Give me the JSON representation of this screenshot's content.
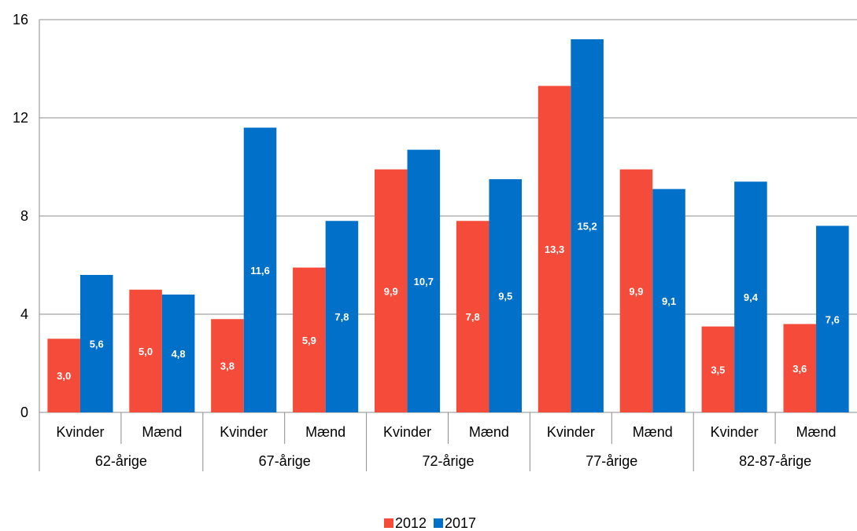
{
  "chart_data": {
    "type": "bar",
    "groups": [
      "62-årige",
      "67-årige",
      "72-årige",
      "77-årige",
      "82-87-årige"
    ],
    "categories": [
      "Kvinder",
      "Mænd",
      "Kvinder",
      "Mænd",
      "Kvinder",
      "Mænd",
      "Kvinder",
      "Mænd",
      "Kvinder",
      "Mænd"
    ],
    "series": [
      {
        "name": "2012",
        "color": "#f44b3a",
        "values": [
          3.0,
          5.0,
          3.8,
          5.9,
          9.9,
          7.8,
          13.3,
          9.9,
          3.5,
          3.6
        ],
        "labels": [
          "3,0",
          "5,0",
          "3,8",
          "5,9",
          "9,9",
          "7,8",
          "13,3",
          "9,9",
          "3,5",
          "3,6"
        ]
      },
      {
        "name": "2017",
        "color": "#0070c8",
        "values": [
          5.6,
          4.8,
          11.6,
          7.8,
          10.7,
          9.5,
          15.2,
          9.1,
          9.4,
          7.6
        ],
        "labels": [
          "5,6",
          "4,8",
          "11,6",
          "7,8",
          "10,7",
          "9,5",
          "15,2",
          "9,1",
          "9,4",
          "7,6"
        ]
      }
    ],
    "yticks": [
      "0",
      "4",
      "8",
      "12",
      "16"
    ],
    "ylim": [
      0,
      16
    ],
    "grid": true,
    "legend_position": "bottom"
  }
}
